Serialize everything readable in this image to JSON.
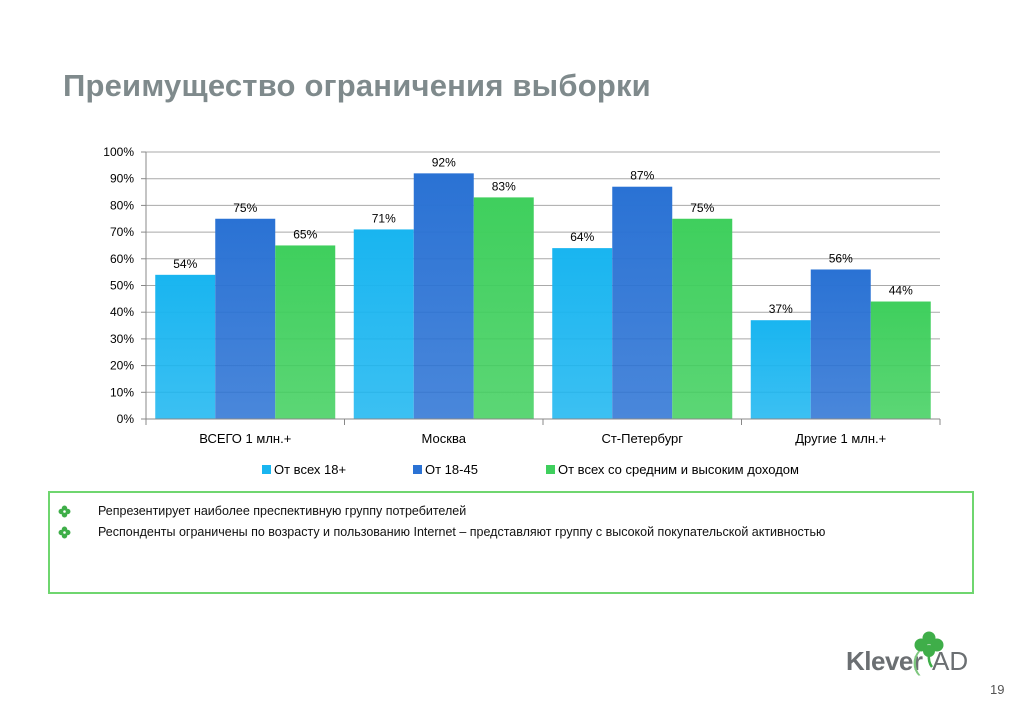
{
  "slide": {
    "title": "Преимущество ограничения выборки",
    "page_number": "19"
  },
  "chart_data": {
    "type": "bar",
    "categories": [
      "ВСЕГО 1 млн.+",
      "Москва",
      "Ст-Петербург",
      "Другие 1 млн.+"
    ],
    "series": [
      {
        "name": "От всех 18+",
        "values": [
          54,
          71,
          64,
          37
        ],
        "color": "#19b5f0"
      },
      {
        "name": "От 18-45",
        "values": [
          75,
          92,
          87,
          56
        ],
        "color": "#2a72d4"
      },
      {
        "name": "От всех со средним и высоким доходом",
        "values": [
          65,
          83,
          75,
          44
        ],
        "color": "#3fcf5d"
      }
    ],
    "value_suffix": "%",
    "ylim": [
      0,
      100
    ],
    "yticks": [
      "0%",
      "10%",
      "20%",
      "30%",
      "40%",
      "50%",
      "60%",
      "70%",
      "80%",
      "90%",
      "100%"
    ],
    "grid": true,
    "legend_position": "bottom",
    "title": "",
    "xlabel": "",
    "ylabel": ""
  },
  "bullets": {
    "items": [
      {
        "text": "Репрезентирует наиболее преспективную группу потребителей",
        "icon": "clover-icon"
      },
      {
        "text": "Респонденты ограничены по возрасту и пользованию Internet – представляют группу с высокой покупательской активностью",
        "icon": "clover-icon"
      }
    ],
    "border_color": "#6fd66f"
  },
  "logo": {
    "name_part": "Klever",
    "paren": "(",
    "suffix": "AD",
    "brand_color": "#3fae49"
  }
}
